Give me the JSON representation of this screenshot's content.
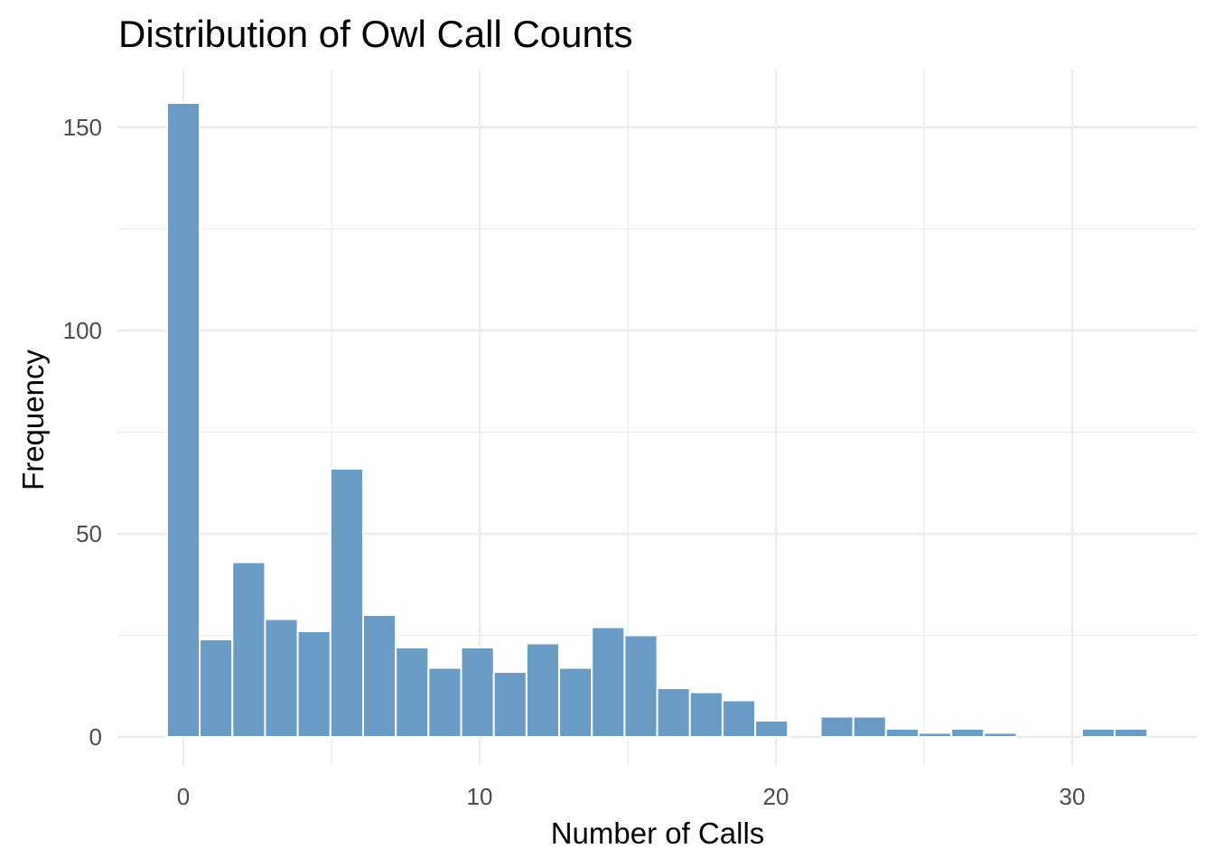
{
  "chart_data": {
    "type": "bar",
    "title": "Distribution of Owl Call Counts",
    "xlabel": "Number of Calls",
    "ylabel": "Frequency",
    "bin_width": 1.103,
    "bin_centers_start": 0,
    "values": [
      156,
      24,
      43,
      29,
      26,
      66,
      30,
      22,
      17,
      22,
      16,
      23,
      17,
      27,
      25,
      12,
      11,
      9,
      4,
      0,
      5,
      5,
      2,
      1,
      2,
      1,
      0,
      0,
      2,
      2
    ],
    "xlim": [
      -2.2,
      34.2
    ],
    "ylim": [
      -7,
      163
    ],
    "x_ticks": [
      0,
      10,
      20,
      30
    ],
    "x_tick_labels": [
      "0",
      "10",
      "20",
      "30"
    ],
    "y_ticks": [
      0,
      50,
      100,
      150
    ],
    "y_tick_labels": [
      "0",
      "50",
      "100",
      "150"
    ],
    "grid": true,
    "colors": {
      "bar_fill": "#6a9bc5",
      "bar_edge": "#ffffff",
      "grid": "#ebebeb"
    }
  }
}
